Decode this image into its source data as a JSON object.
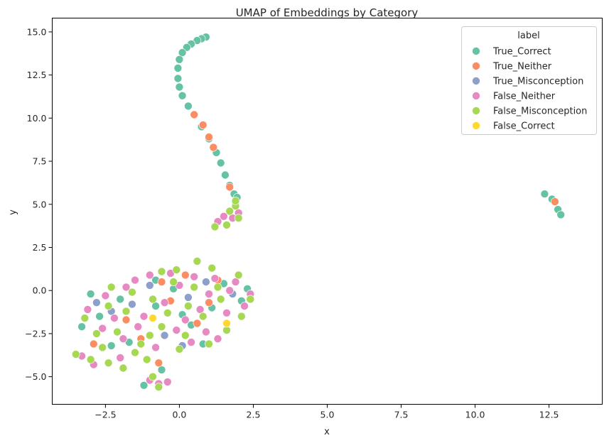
{
  "chart_data": {
    "type": "scatter",
    "title": "UMAP of Embeddings by Category",
    "xlabel": "x",
    "ylabel": "y",
    "xlim": [
      -4.3,
      14.3
    ],
    "ylim": [
      -6.6,
      15.8
    ],
    "xticks": [
      -2.5,
      0.0,
      2.5,
      5.0,
      7.5,
      10.0,
      12.5
    ],
    "xtick_labels": [
      "−2.5",
      "0.0",
      "2.5",
      "5.0",
      "7.5",
      "10.0",
      "12.5"
    ],
    "yticks": [
      -5.0,
      -2.5,
      0.0,
      2.5,
      5.0,
      7.5,
      10.0,
      12.5,
      15.0
    ],
    "ytick_labels": [
      "−5.0",
      "−2.5",
      "0.0",
      "2.5",
      "5.0",
      "7.5",
      "10.0",
      "12.5",
      "15.0"
    ],
    "grid": false,
    "legend": {
      "title": "label",
      "position": "top-right"
    },
    "series": [
      {
        "name": "True_Correct",
        "color": "#66c2a5",
        "points": [
          [
            0.9,
            14.7
          ],
          [
            0.75,
            14.6
          ],
          [
            0.6,
            14.5
          ],
          [
            0.4,
            14.3
          ],
          [
            0.25,
            14.1
          ],
          [
            0.1,
            13.8
          ],
          [
            0.0,
            13.4
          ],
          [
            -0.05,
            12.9
          ],
          [
            -0.05,
            12.3
          ],
          [
            0.0,
            11.8
          ],
          [
            0.1,
            11.3
          ],
          [
            0.3,
            10.7
          ],
          [
            0.5,
            10.2
          ],
          [
            0.75,
            9.5
          ],
          [
            1.0,
            8.8
          ],
          [
            1.25,
            8.0
          ],
          [
            1.4,
            7.4
          ],
          [
            1.55,
            6.7
          ],
          [
            1.7,
            6.1
          ],
          [
            1.85,
            5.6
          ],
          [
            1.95,
            5.4
          ],
          [
            1.9,
            5.0
          ],
          [
            12.35,
            5.6
          ],
          [
            12.6,
            5.3
          ],
          [
            12.8,
            4.7
          ],
          [
            12.9,
            4.4
          ],
          [
            -3.0,
            -0.2
          ],
          [
            -2.7,
            -1.5
          ],
          [
            -2.3,
            -3.2
          ],
          [
            -1.5,
            -3.6
          ],
          [
            -1.2,
            -5.5
          ],
          [
            -0.6,
            -4.6
          ],
          [
            -0.2,
            0.1
          ],
          [
            -0.8,
            -0.9
          ],
          [
            0.4,
            -2.0
          ],
          [
            1.1,
            -1.0
          ],
          [
            1.5,
            0.4
          ],
          [
            2.1,
            -0.6
          ],
          [
            -2.0,
            -0.5
          ],
          [
            -0.8,
            0.6
          ],
          [
            0.8,
            -3.1
          ],
          [
            -3.3,
            -2.1
          ],
          [
            -1.7,
            -3.0
          ],
          [
            0.1,
            -1.4
          ],
          [
            2.3,
            0.1
          ]
        ]
      },
      {
        "name": "True_Neither",
        "color": "#fc8d62",
        "points": [
          [
            0.5,
            10.2
          ],
          [
            0.8,
            9.6
          ],
          [
            1.0,
            8.9
          ],
          [
            1.15,
            8.3
          ],
          [
            1.7,
            6.0
          ],
          [
            12.7,
            5.15
          ],
          [
            -0.7,
            -4.2
          ],
          [
            -1.3,
            -2.8
          ],
          [
            1.3,
            0.6
          ],
          [
            -0.6,
            0.5
          ],
          [
            1.0,
            -0.7
          ],
          [
            0.2,
            0.9
          ],
          [
            -2.9,
            -3.1
          ],
          [
            -1.8,
            -1.7
          ],
          [
            0.6,
            -1.9
          ],
          [
            -0.3,
            -0.6
          ]
        ]
      },
      {
        "name": "True_Misconception",
        "color": "#8da0cb",
        "points": [
          [
            -1.0,
            0.3
          ],
          [
            0.3,
            -0.4
          ],
          [
            -2.3,
            -1.2
          ],
          [
            1.8,
            -0.2
          ],
          [
            -0.5,
            -2.6
          ],
          [
            0.9,
            0.5
          ],
          [
            -1.6,
            -0.8
          ],
          [
            0.1,
            -3.2
          ],
          [
            -2.8,
            -0.7
          ]
        ]
      },
      {
        "name": "False_Neither",
        "color": "#e78ac3",
        "points": [
          [
            1.5,
            4.3
          ],
          [
            1.8,
            4.2
          ],
          [
            1.3,
            4.0
          ],
          [
            2.0,
            4.5
          ],
          [
            -0.7,
            -5.4
          ],
          [
            -0.4,
            -5.3
          ],
          [
            -1.0,
            -5.2
          ],
          [
            -3.3,
            -3.8
          ],
          [
            -2.9,
            -4.3
          ],
          [
            -2.0,
            -3.9
          ],
          [
            -2.5,
            -0.3
          ],
          [
            -1.8,
            0.2
          ],
          [
            -1.0,
            0.9
          ],
          [
            -0.3,
            1.0
          ],
          [
            0.5,
            0.8
          ],
          [
            1.2,
            0.7
          ],
          [
            1.9,
            0.5
          ],
          [
            2.4,
            -0.2
          ],
          [
            -3.1,
            -1.1
          ],
          [
            -2.6,
            -2.2
          ],
          [
            -1.9,
            -2.8
          ],
          [
            -1.2,
            -1.5
          ],
          [
            -0.5,
            -0.7
          ],
          [
            0.2,
            -1.7
          ],
          [
            0.9,
            -2.4
          ],
          [
            1.6,
            -1.3
          ],
          [
            2.2,
            -0.9
          ],
          [
            -0.8,
            -3.3
          ],
          [
            0.4,
            -3.0
          ],
          [
            1.3,
            -2.8
          ],
          [
            -1.5,
            0.6
          ],
          [
            0.0,
            0.3
          ],
          [
            -2.2,
            -1.6
          ],
          [
            1.0,
            -0.2
          ],
          [
            -0.1,
            -2.3
          ],
          [
            -1.4,
            -2.1
          ],
          [
            0.7,
            -1.1
          ],
          [
            1.7,
            0.0
          ]
        ]
      },
      {
        "name": "False_Misconception",
        "color": "#a6d854",
        "points": [
          [
            1.9,
            4.9
          ],
          [
            1.7,
            4.6
          ],
          [
            2.0,
            4.2
          ],
          [
            1.6,
            3.8
          ],
          [
            1.2,
            3.7
          ],
          [
            1.9,
            5.2
          ],
          [
            -3.5,
            -3.7
          ],
          [
            -3.0,
            -4.0
          ],
          [
            -2.4,
            -4.2
          ],
          [
            -1.9,
            -4.5
          ],
          [
            -0.7,
            -5.6
          ],
          [
            -0.9,
            -5.0
          ],
          [
            -1.1,
            -4.0
          ],
          [
            0.6,
            1.7
          ],
          [
            -0.1,
            1.2
          ],
          [
            1.1,
            1.3
          ],
          [
            -0.6,
            1.1
          ],
          [
            -2.3,
            0.2
          ],
          [
            -1.6,
            -0.1
          ],
          [
            -0.9,
            -0.5
          ],
          [
            -0.2,
            0.5
          ],
          [
            0.5,
            0.2
          ],
          [
            1.4,
            -0.5
          ],
          [
            2.0,
            0.9
          ],
          [
            2.4,
            -0.5
          ],
          [
            -3.2,
            -1.6
          ],
          [
            -2.8,
            -2.5
          ],
          [
            -2.1,
            -2.4
          ],
          [
            -1.3,
            -3.1
          ],
          [
            -0.6,
            -2.1
          ],
          [
            0.2,
            -2.6
          ],
          [
            1.0,
            -3.1
          ],
          [
            1.6,
            -2.3
          ],
          [
            2.1,
            -1.5
          ],
          [
            -1.8,
            -1.2
          ],
          [
            -0.4,
            -1.3
          ],
          [
            0.8,
            -1.5
          ],
          [
            -2.6,
            -3.3
          ],
          [
            -1.5,
            -3.6
          ],
          [
            0.3,
            -0.9
          ],
          [
            1.3,
            0.2
          ],
          [
            -1.0,
            -2.6
          ],
          [
            0.0,
            -3.4
          ],
          [
            -2.4,
            -0.9
          ]
        ]
      },
      {
        "name": "False_Correct",
        "color": "#ffd92f",
        "points": [
          [
            1.6,
            -1.9
          ],
          [
            -0.9,
            -1.6
          ]
        ]
      }
    ]
  }
}
